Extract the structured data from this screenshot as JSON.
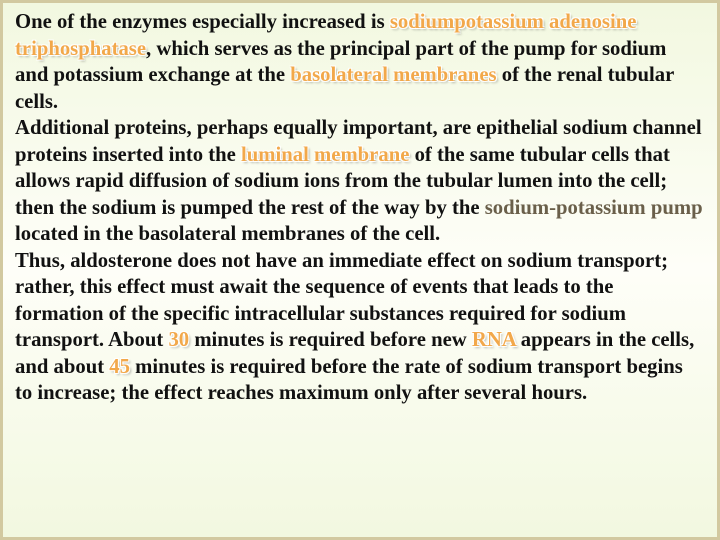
{
  "colors": {
    "highlight": "#f2a84a",
    "term": "#6a5f4a",
    "text": "#111111",
    "bg_top": "#f2f8e0",
    "bg_mid": "#fefef8",
    "border": "#d2c9a0"
  },
  "typography": {
    "font_family": "Georgia, 'Times New Roman', serif",
    "font_size_pt": 15.5,
    "line_height": 1.28,
    "base_weight": "bold"
  },
  "t": {
    "p1_a": "One of the enzymes especially increased is ",
    "p1_hl1": "sodiumpotassium adenosine triphosphatase",
    "p1_b": ", which serves as the principal part of the pump for sodium and potassium exchange at the ",
    "p1_hl2": "basolateral membranes",
    "p1_c": " of the renal tubular cells.",
    "p2_a": "Additional proteins, perhaps equally important, are epithelial sodium channel proteins inserted into the ",
    "p2_hl1": "luminal membrane",
    "p2_b": " of the same tubular cells that allows rapid diffusion of sodium ions from the tubular lumen into the cell; then the sodium is pumped the rest of the way by the ",
    "p2_term": "sodium-potassium pump",
    "p2_c": " located in the basolateral membranes of the cell.",
    "p3_a": "Thus, aldosterone does not have an immediate effect on sodium transport; rather, this effect must await the sequence of events that leads to the formation of the specific intracellular substances required for sodium transport. About ",
    "p3_hl1": "30",
    "p3_b": " minutes is required before new ",
    "p3_hl2": "RNA",
    "p3_c": " appears in the cells, and about ",
    "p3_hl3": "45",
    "p3_d": " minutes is required before the rate of sodium transport begins to increase; the effect reaches maximum only after several hours."
  }
}
